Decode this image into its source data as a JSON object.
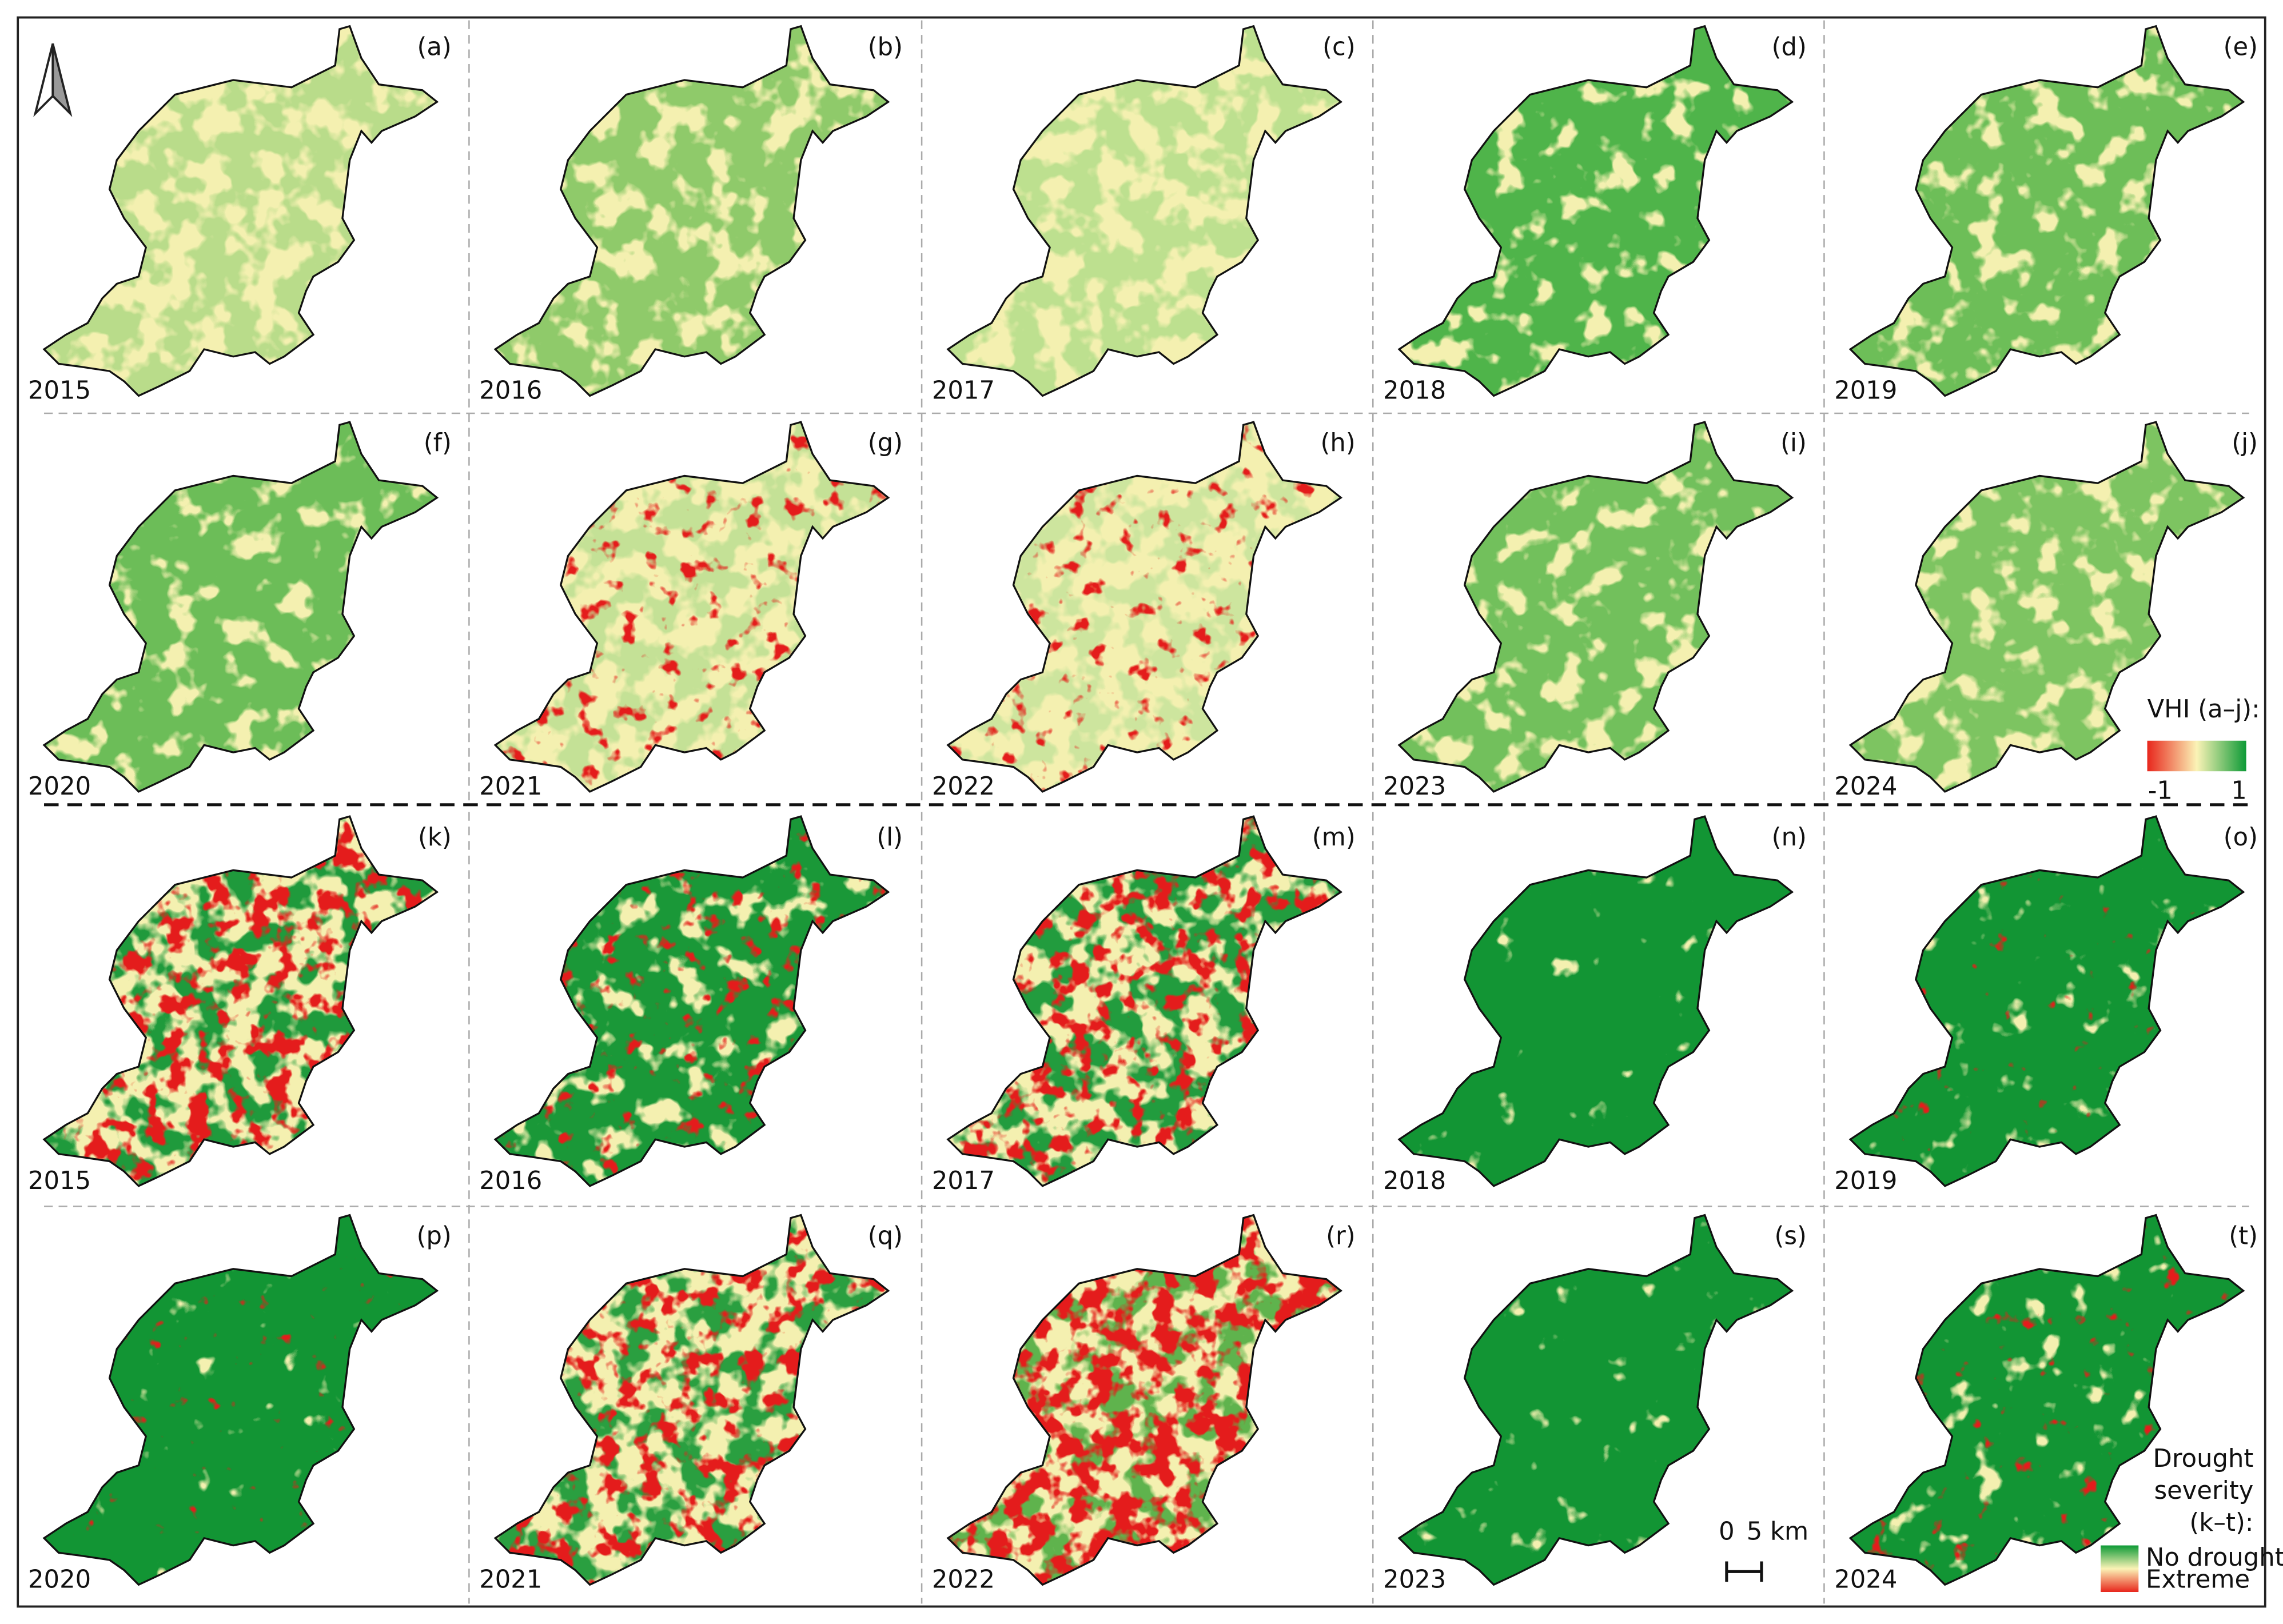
{
  "panels": [
    {
      "label": "(a)",
      "year": "2015"
    },
    {
      "label": "(b)",
      "year": "2016"
    },
    {
      "label": "(c)",
      "year": "2017"
    },
    {
      "label": "(d)",
      "year": "2018"
    },
    {
      "label": "(e)",
      "year": "2019"
    },
    {
      "label": "(f)",
      "year": "2020"
    },
    {
      "label": "(g)",
      "year": "2021"
    },
    {
      "label": "(h)",
      "year": "2022"
    },
    {
      "label": "(i)",
      "year": "2023"
    },
    {
      "label": "(j)",
      "year": "2024"
    },
    {
      "label": "(k)",
      "year": "2015"
    },
    {
      "label": "(l)",
      "year": "2016"
    },
    {
      "label": "(m)",
      "year": "2017"
    },
    {
      "label": "(n)",
      "year": "2018"
    },
    {
      "label": "(o)",
      "year": "2019"
    },
    {
      "label": "(p)",
      "year": "2020"
    },
    {
      "label": "(q)",
      "year": "2021"
    },
    {
      "label": "(r)",
      "year": "2022"
    },
    {
      "label": "(s)",
      "year": "2023"
    },
    {
      "label": "(t)",
      "year": "2024"
    }
  ],
  "legend_vhi": {
    "title": "VHI (a–j):",
    "min": "-1",
    "max": "1"
  },
  "legend_drought": {
    "title_lines": [
      "Drought",
      "severity",
      "(k–t):"
    ],
    "high": "No drought",
    "low": "Extreme"
  },
  "scale_bar": {
    "zero": "0",
    "length": "5 km"
  }
}
